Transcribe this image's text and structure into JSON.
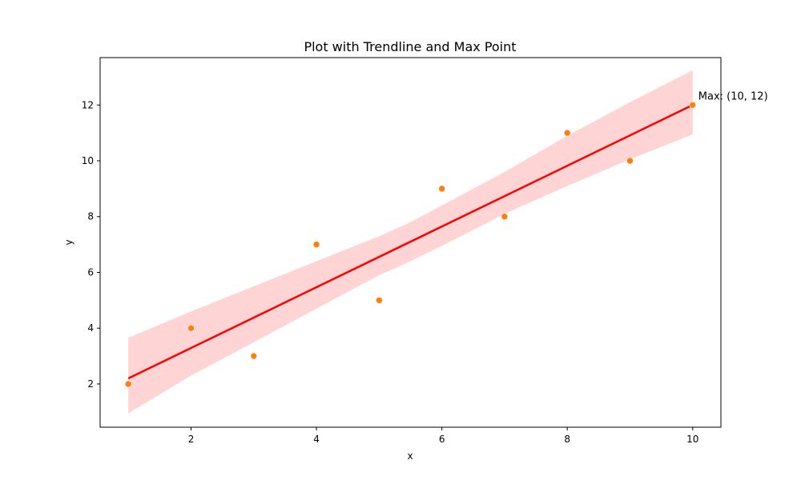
{
  "chart_data": {
    "type": "scatter",
    "title": "Plot with Trendline and Max Point",
    "xlabel": "x",
    "ylabel": "y",
    "xlim": [
      0.55,
      10.45
    ],
    "ylim": [
      0.45,
      13.7
    ],
    "xticks": [
      2,
      4,
      6,
      8,
      10
    ],
    "yticks": [
      2,
      4,
      6,
      8,
      10,
      12
    ],
    "grid": false,
    "points": {
      "x": [
        1,
        2,
        3,
        4,
        5,
        6,
        7,
        8,
        9,
        10
      ],
      "y": [
        2,
        4,
        3,
        7,
        5,
        9,
        8,
        11,
        10,
        12
      ],
      "color": "#ff7f0e"
    },
    "trendline": {
      "x": [
        1,
        10
      ],
      "y": [
        2.2,
        12.0
      ],
      "color": "#ff0000",
      "band_color": "#ffcccc",
      "band": {
        "x": [
          1,
          2,
          3,
          4,
          5,
          5.5,
          6,
          7,
          8,
          9,
          10
        ],
        "lower": [
          0.95,
          2.3,
          3.5,
          4.7,
          5.9,
          6.4,
          6.95,
          8.1,
          9.1,
          10.05,
          10.95
        ],
        "upper": [
          3.65,
          4.6,
          5.5,
          6.4,
          7.3,
          7.8,
          8.4,
          9.6,
          10.9,
          12.1,
          13.25
        ]
      }
    },
    "annotation": {
      "text": "Max: (10, 12)",
      "x": 10,
      "y": 12
    }
  }
}
